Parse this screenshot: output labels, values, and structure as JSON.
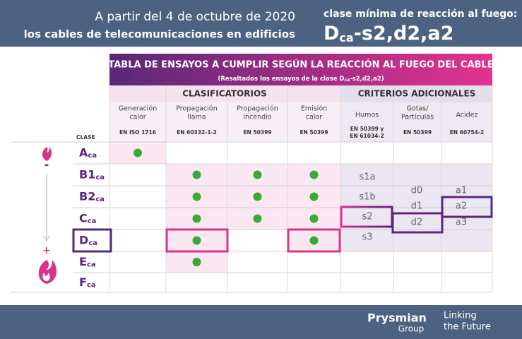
{
  "header": {
    "date_line": "A partir del 4 de octubre de 2020",
    "subject_line": "los cables de telecomunicaciones en edificios",
    "min_class_label": "clase mínima de reacción al fuego:",
    "min_class": {
      "main": "D",
      "sub": "ca",
      "suffix": "-s2,d2,a2"
    }
  },
  "table": {
    "title": "TABLA DE ENSAYOS A CUMPLIR SEGÚN LA REACCIÓN AL FUEGO DEL CABLE",
    "subtitle": {
      "before": "(Resaltados los ensayos de la clase D",
      "sub": "ca",
      "after": "-s2,d2,a2)"
    },
    "groups": [
      {
        "label": "CLASIFICATORIOS"
      },
      {
        "label": "CRITERIOS ADICIONALES"
      }
    ],
    "columns": [
      {
        "lines": [
          "Generación",
          "calor"
        ],
        "standard": [
          "EN ISO 1716"
        ]
      },
      {
        "lines": [
          "Propagación",
          "llama"
        ],
        "standard": [
          "EN 60332-1-2"
        ]
      },
      {
        "lines": [
          "Propagación",
          "incendio"
        ],
        "standard": [
          "EN 50399"
        ]
      },
      {
        "lines": [
          "Emisión",
          "calor"
        ],
        "standard": [
          "EN 50399"
        ]
      },
      {
        "lines": [
          "Humos"
        ],
        "standard": [
          "EN 50399 y",
          "EN 61034-2"
        ]
      },
      {
        "lines": [
          "Gotas/",
          "Partículas"
        ],
        "standard": [
          "EN 50399"
        ]
      },
      {
        "lines": [
          "Acidez"
        ],
        "standard": [
          "EN 60754-2"
        ]
      }
    ],
    "class_header": "CLASE",
    "rows": [
      {
        "main": "A",
        "sub": "ca",
        "tests": [
          true,
          false,
          false,
          false
        ]
      },
      {
        "main": "B1",
        "sub": "ca",
        "tests": [
          false,
          true,
          true,
          true
        ]
      },
      {
        "main": "B2",
        "sub": "ca",
        "tests": [
          false,
          true,
          true,
          true
        ]
      },
      {
        "main": "C",
        "sub": "ca",
        "tests": [
          false,
          true,
          true,
          true
        ]
      },
      {
        "main": "D",
        "sub": "ca",
        "tests": [
          false,
          true,
          false,
          true
        ]
      },
      {
        "main": "E",
        "sub": "ca",
        "tests": [
          false,
          true,
          false,
          false
        ]
      },
      {
        "main": "F",
        "sub": "ca",
        "tests": [
          false,
          false,
          false,
          false
        ]
      }
    ],
    "smoke": [
      "s1a",
      "s1b",
      "s2",
      "s3"
    ],
    "droplets": [
      "d0",
      "d1",
      "d2"
    ],
    "acidity": [
      "a1",
      "a2",
      "a3"
    ],
    "scale_signs": {
      "less": "-",
      "more": "+"
    }
  },
  "footer": {
    "brand": "Prysmian",
    "brand_sub": "Group",
    "tagline": [
      "Linking",
      "the Future"
    ]
  }
}
